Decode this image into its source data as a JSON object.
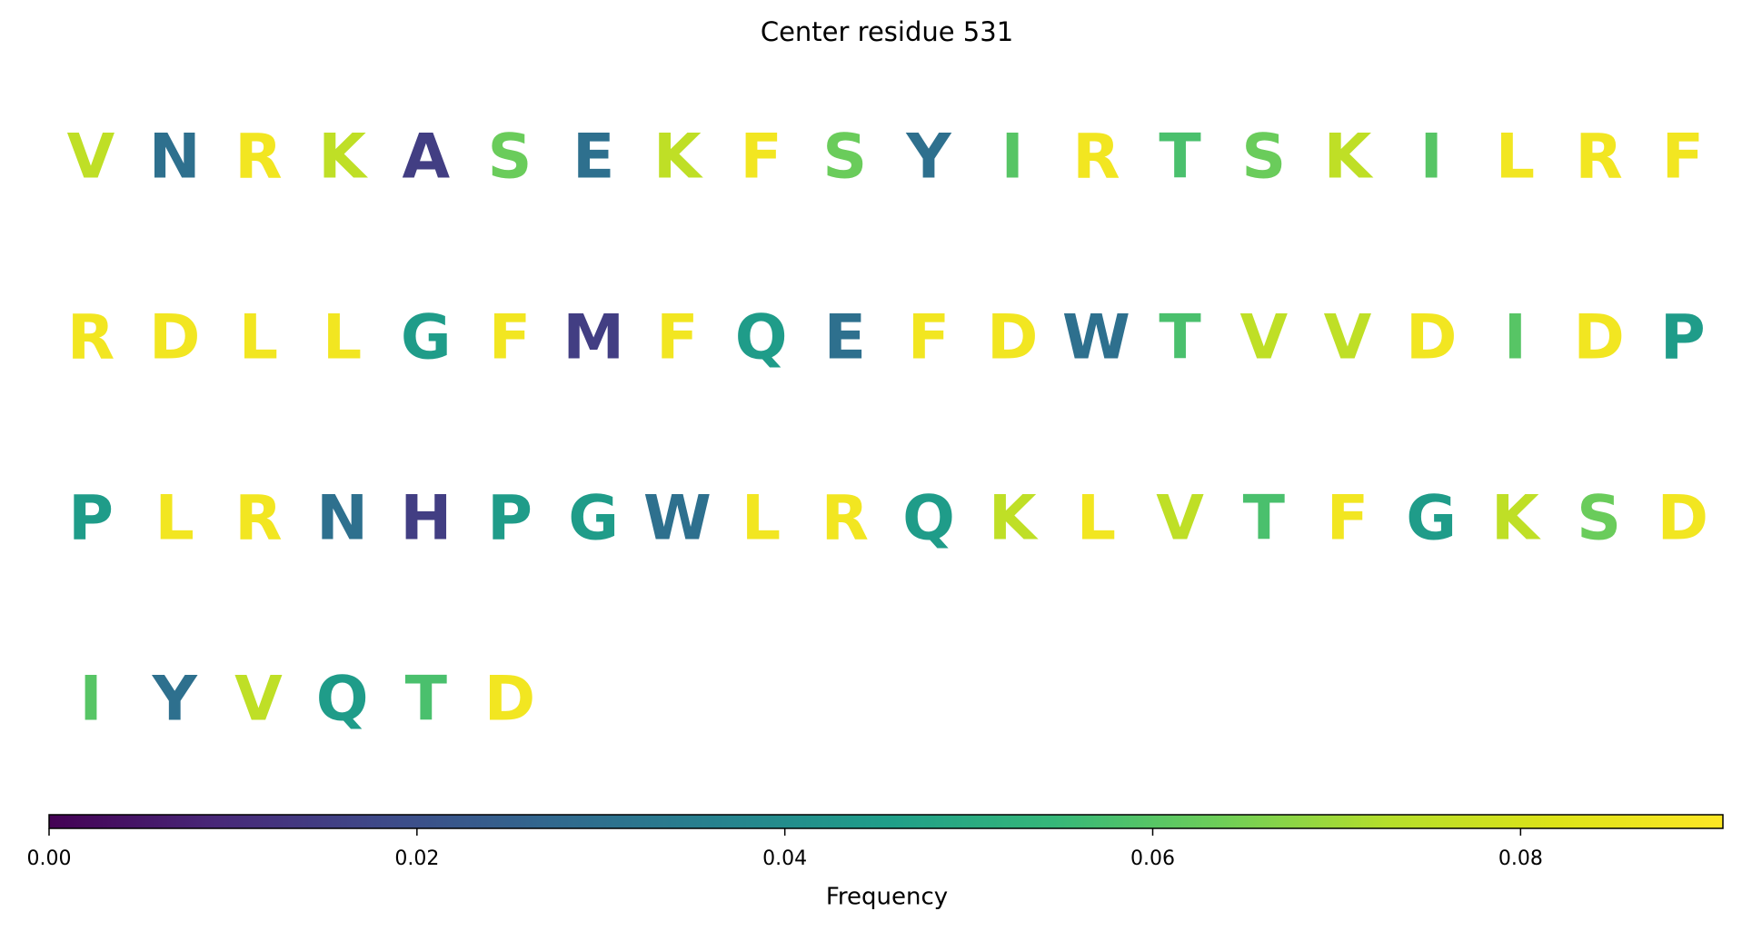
{
  "chart_data": {
    "type": "text",
    "title": "Center residue 531",
    "colormap": "viridis",
    "columns": 20,
    "categories": [
      "V",
      "N",
      "R",
      "K",
      "A",
      "S",
      "E",
      "K",
      "F",
      "S",
      "Y",
      "I",
      "R",
      "T",
      "S",
      "K",
      "I",
      "L",
      "R",
      "F",
      "R",
      "D",
      "L",
      "L",
      "G",
      "F",
      "M",
      "F",
      "Q",
      "E",
      "F",
      "D",
      "W",
      "T",
      "V",
      "V",
      "D",
      "I",
      "D",
      "P",
      "P",
      "L",
      "R",
      "N",
      "H",
      "P",
      "G",
      "W",
      "L",
      "R",
      "Q",
      "K",
      "L",
      "V",
      "T",
      "F",
      "G",
      "K",
      "S",
      "D",
      "I",
      "Y",
      "V",
      "Q",
      "T",
      "D"
    ],
    "values": [
      0.075,
      0.03,
      0.088,
      0.075,
      0.015,
      0.063,
      0.03,
      0.075,
      0.088,
      0.063,
      0.03,
      0.06,
      0.088,
      0.058,
      0.063,
      0.075,
      0.06,
      0.088,
      0.088,
      0.088,
      0.088,
      0.088,
      0.088,
      0.088,
      0.045,
      0.088,
      0.015,
      0.088,
      0.045,
      0.03,
      0.088,
      0.088,
      0.03,
      0.058,
      0.075,
      0.075,
      0.088,
      0.06,
      0.088,
      0.045,
      0.045,
      0.088,
      0.088,
      0.03,
      0.015,
      0.045,
      0.045,
      0.03,
      0.088,
      0.088,
      0.045,
      0.075,
      0.088,
      0.075,
      0.058,
      0.088,
      0.045,
      0.075,
      0.063,
      0.088,
      0.06,
      0.03,
      0.075,
      0.045,
      0.058,
      0.088
    ],
    "colorbar_label": "Frequency",
    "clim": [
      0,
      0.091
    ],
    "cticks": [
      {
        "value": 0,
        "label": "0.00"
      },
      0.02,
      0.04,
      0.06,
      0.08
    ]
  }
}
